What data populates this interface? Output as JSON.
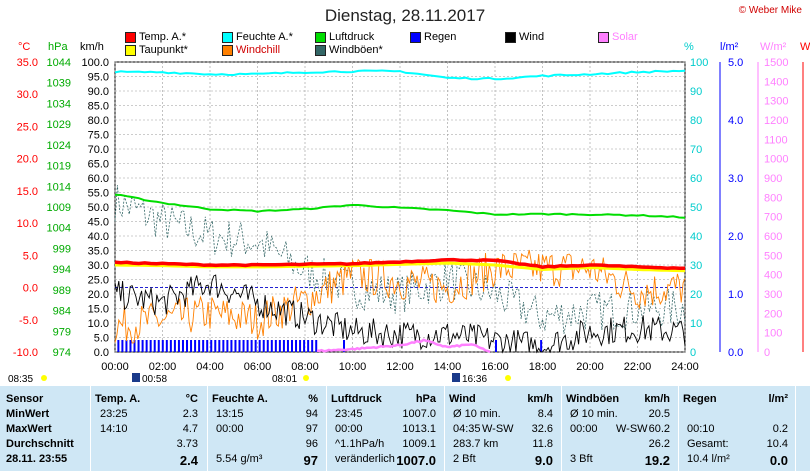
{
  "title": "Dienstag, 28.11.2017",
  "copyright": "© Weber Mike",
  "legend": [
    {
      "label": "Temp. A.*",
      "color": "#ff0000"
    },
    {
      "label": "Feuchte A.*",
      "color": "#00ffff"
    },
    {
      "label": "Luftdruck",
      "color": "#00dd00"
    },
    {
      "label": "Regen",
      "color": "#0000ff"
    },
    {
      "label": "Wind",
      "color": "#000000"
    },
    {
      "label": "Solar",
      "color": "#ff80ff"
    },
    {
      "label": "Taupunkt*",
      "color": "#ffff00"
    },
    {
      "label": "Windchill",
      "color": "#ff8000"
    },
    {
      "label": "Windböen*",
      "color": "#336666"
    }
  ],
  "axis_units": {
    "temp": "°C",
    "pressure": "hPa",
    "wind": "km/h",
    "humidity": "%",
    "rain": "l/m²",
    "solar": "W/m²",
    "cut": "W"
  },
  "colors": {
    "temp": "#ff0000",
    "pressure": "#00dd00",
    "wind": "#000000",
    "humidity": "#00ffff",
    "rain": "#0000ff",
    "solar": "#ff80ff",
    "dewpoint": "#ffff00",
    "windchill": "#ff8000",
    "gusts": "#336666",
    "table_bg": "#cfe7f5"
  },
  "chart_data": {
    "type": "line",
    "x_range": [
      "00:00",
      "24:00"
    ],
    "x_ticks": [
      "00:00",
      "02:00",
      "04:00",
      "06:00",
      "08:00",
      "10:00",
      "12:00",
      "14:00",
      "16:00",
      "18:00",
      "20:00",
      "22:00",
      "24:00"
    ],
    "axes": {
      "temp": {
        "range": [
          -10,
          35
        ],
        "ticks": [
          "35.0",
          "30.0",
          "25.0",
          "20.0",
          "15.0",
          "10.0",
          "5.0",
          "0.0",
          "-5.0",
          "-10.0"
        ]
      },
      "pressure": {
        "range": [
          974,
          1044
        ],
        "ticks": [
          "1044",
          "1039",
          "1034",
          "1029",
          "1024",
          "1019",
          "1014",
          "1009",
          "1004",
          "999",
          "994",
          "989",
          "984",
          "979",
          "974"
        ]
      },
      "wind": {
        "range": [
          0,
          100
        ],
        "ticks": [
          "100.0",
          "95.0",
          "90.0",
          "85.0",
          "80.0",
          "75.0",
          "70.0",
          "65.0",
          "60.0",
          "55.0",
          "50.0",
          "45.0",
          "40.0",
          "35.0",
          "30.0",
          "25.0",
          "20.0",
          "15.0",
          "10.0",
          "5.0",
          "0.0"
        ]
      },
      "humidity": {
        "range": [
          0,
          100
        ],
        "ticks": [
          "100",
          "90",
          "80",
          "70",
          "60",
          "50",
          "40",
          "30",
          "20",
          "10",
          "0"
        ]
      },
      "rain": {
        "range": [
          0,
          5
        ],
        "ticks": [
          "5.0",
          "4.0",
          "3.0",
          "2.0",
          "1.0",
          "0.0"
        ]
      },
      "solar": {
        "range": [
          0,
          1500
        ],
        "ticks": [
          "1500",
          "1400",
          "1300",
          "1200",
          "1100",
          "1000",
          "900",
          "800",
          "700",
          "600",
          "500",
          "400",
          "300",
          "200",
          "100",
          "0"
        ]
      }
    },
    "series": [
      {
        "name": "Temp. A.*",
        "axis": "temp",
        "x": [
          0,
          2,
          4,
          6,
          8,
          10,
          12,
          14,
          16,
          18,
          20,
          22,
          24
        ],
        "values": [
          3.9,
          3.7,
          3.5,
          3.5,
          3.6,
          3.7,
          4.0,
          4.3,
          4.2,
          3.2,
          3.5,
          3.2,
          3.0
        ]
      },
      {
        "name": "Taupunkt*",
        "axis": "temp",
        "x": [
          0,
          2,
          4,
          6,
          8,
          10,
          12,
          14,
          16,
          18,
          20,
          22,
          24
        ],
        "values": [
          3.5,
          3.4,
          3.2,
          3.2,
          3.3,
          3.4,
          3.6,
          3.8,
          3.5,
          2.8,
          3.1,
          2.8,
          2.6
        ]
      },
      {
        "name": "Feuchte A.*",
        "axis": "humidity",
        "x": [
          0,
          2,
          4,
          6,
          8,
          10,
          12,
          14,
          16,
          18,
          20,
          22,
          24
        ],
        "values": [
          96.5,
          96.5,
          95.8,
          95.8,
          96.5,
          96.8,
          96.8,
          94.5,
          94.2,
          95.2,
          95.8,
          96.5,
          97
        ]
      },
      {
        "name": "Luftdruck",
        "axis": "pressure",
        "x": [
          0,
          2,
          4,
          6,
          8,
          10,
          12,
          14,
          16,
          18,
          20,
          22,
          24
        ],
        "values": [
          1012,
          1010,
          1008.5,
          1008,
          1008.5,
          1009.5,
          1008.8,
          1008.2,
          1007.2,
          1007.3,
          1007.2,
          1007.0,
          1006.5
        ]
      },
      {
        "name": "Wind",
        "axis": "wind",
        "x": [
          0,
          2,
          4,
          6,
          8,
          10,
          12,
          14,
          16,
          18,
          20,
          22,
          24
        ],
        "values": [
          20,
          17,
          24,
          17,
          12,
          7,
          6,
          6,
          4,
          2,
          7,
          8,
          7
        ]
      },
      {
        "name": "Windchill",
        "axis": "temp",
        "x": [
          0,
          2,
          4,
          6,
          8,
          10,
          12,
          14,
          16,
          18,
          20,
          22,
          24
        ],
        "values": [
          -6,
          -5,
          -4,
          -5,
          -2,
          2,
          1,
          0,
          3,
          3,
          3,
          -0.5,
          0
        ]
      },
      {
        "name": "Windböen*",
        "axis": "wind",
        "x": [
          0,
          2,
          4,
          6,
          8,
          10,
          12,
          14,
          16,
          18,
          20,
          22,
          24
        ],
        "values": [
          52,
          45,
          40,
          38,
          28,
          22,
          20,
          25,
          20,
          12,
          14,
          15,
          15
        ]
      },
      {
        "name": "Solar",
        "axis": "solar",
        "x": [
          8.5,
          10,
          12,
          13,
          14,
          15,
          15.8
        ],
        "values": [
          5,
          15,
          35,
          60,
          25,
          40,
          0
        ]
      }
    ],
    "rain_ticks_until_hour": 8.5
  },
  "markers": {
    "sunrise": "08:01",
    "sunset": "16:36",
    "moonrise": "00:58",
    "left": "08:35"
  },
  "table": {
    "headers": [
      "Sensor",
      "Temp. A.",
      "°C",
      "Feuchte A.",
      "%",
      "Luftdruck",
      "hPa",
      "Wind",
      "km/h",
      "Windböen",
      "km/h",
      "Regen",
      "l/m²"
    ],
    "rows": [
      {
        "label": "MinWert",
        "temp_time": "23:25",
        "temp": "2.3",
        "hum_time": "13:15",
        "hum": "94",
        "press_time": "23:45",
        "press": "1007.0",
        "wind_a": "Ø 10 min.",
        "wind": "8.4",
        "gust_a": "Ø 10 min.",
        "gust": "20.5",
        "rain_a": "",
        "rain": ""
      },
      {
        "label": "MaxWert",
        "temp_time": "14:10",
        "temp": "4.7",
        "hum_time": "00:00",
        "hum": "97",
        "press_time": "00:00",
        "press": "1013.1",
        "wind_a": "04:35",
        "wind_dir": "W-SW",
        "wind": "32.6",
        "gust_a": "00:00",
        "gust_dir": "W-SW",
        "gust": "60.2",
        "rain_a": "00:10",
        "rain": "0.2"
      },
      {
        "label": "Durchschnitt",
        "temp_time": "",
        "temp": "3.73",
        "hum_time": "",
        "hum": "96",
        "press_time": "^1.1hPa/h",
        "press": "1009.1",
        "wind_a": "283.7 km",
        "wind": "11.8",
        "gust_a": "",
        "gust": "26.2",
        "rain_a": "Gesamt:",
        "rain": "10.4"
      },
      {
        "label": "28.11. 23:55",
        "temp_time": "",
        "temp": "2.4",
        "hum_time": "5.54 g/m³",
        "hum": "97",
        "press_time": "veränderlich",
        "press": "1007.0",
        "wind_a": "2 Bft",
        "wind": "9.0",
        "gust_a": "3 Bft",
        "gust": "19.2",
        "rain_a": "10.4 l/m²",
        "rain": "0.0"
      }
    ]
  }
}
